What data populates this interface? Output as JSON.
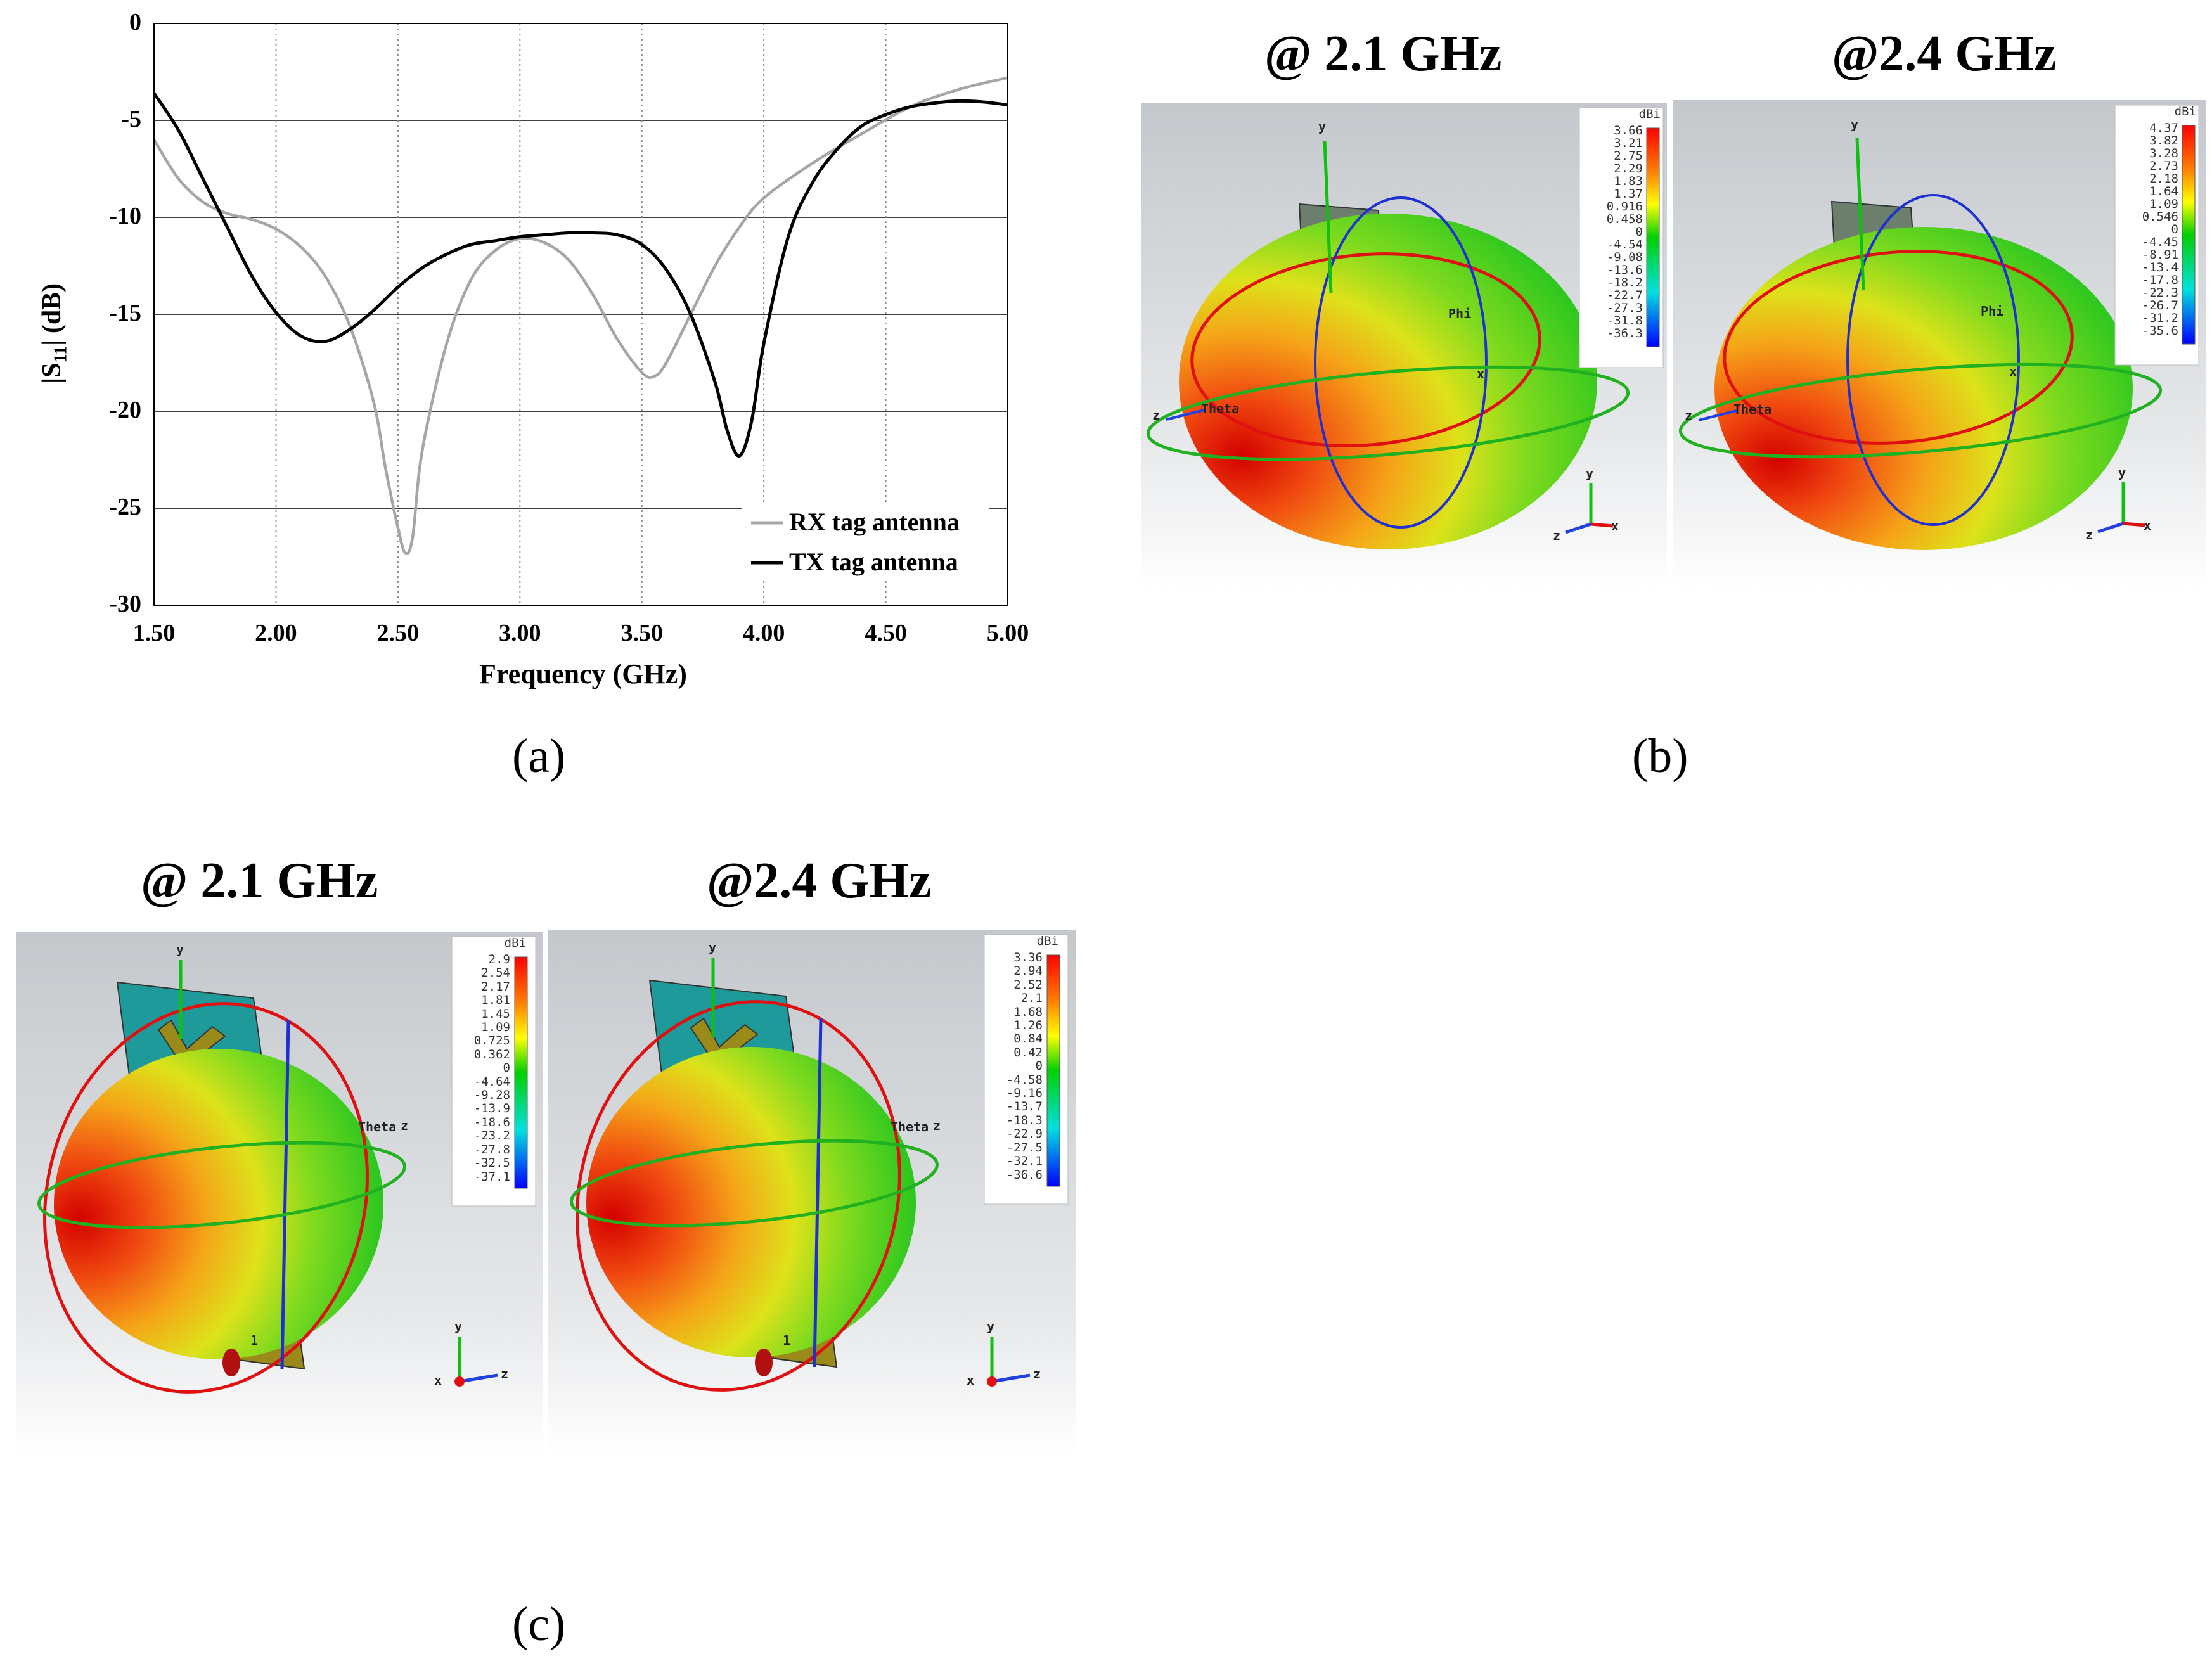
{
  "figure": {
    "panel_labels": [
      "(a)",
      "(b)",
      "(c)"
    ],
    "panel_b": {
      "titles": [
        "@ 2.1 GHz",
        "@2.4 GHz"
      ],
      "colorbars": [
        {
          "unit": "dBi",
          "labels": [
            "3.66",
            "3.21",
            "2.75",
            "2.29",
            "1.83",
            "1.37",
            "0.916",
            "0.458",
            "0",
            "-4.54",
            "-9.08",
            "-13.6",
            "-18.2",
            "-22.7",
            "-27.3",
            "-31.8",
            "-36.3"
          ]
        },
        {
          "unit": "dBi",
          "labels": [
            "4.37",
            "3.82",
            "3.28",
            "2.73",
            "2.18",
            "1.64",
            "1.09",
            "0.546",
            "0",
            "-4.45",
            "-8.91",
            "-13.4",
            "-17.8",
            "-22.3",
            "-26.7",
            "-31.2",
            "-35.6"
          ]
        }
      ],
      "axis_names": {
        "y": "y",
        "x": "x",
        "z": "z",
        "phi": "Phi",
        "theta": "Theta"
      }
    },
    "panel_c": {
      "titles": [
        "@ 2.1 GHz",
        "@2.4 GHz"
      ],
      "colorbars": [
        {
          "unit": "dBi",
          "labels": [
            "2.9",
            "2.54",
            "2.17",
            "1.81",
            "1.45",
            "1.09",
            "0.725",
            "0.362",
            "0",
            "-4.64",
            "-9.28",
            "-13.9",
            "-18.6",
            "-23.2",
            "-27.8",
            "-32.5",
            "-37.1"
          ]
        },
        {
          "unit": "dBi",
          "labels": [
            "3.36",
            "2.94",
            "2.52",
            "2.1",
            "1.68",
            "1.26",
            "0.84",
            "0.42",
            "0",
            "-4.58",
            "-9.16",
            "-13.7",
            "-18.3",
            "-22.9",
            "-27.5",
            "-32.1",
            "-36.6"
          ]
        }
      ],
      "axis_names": {
        "y": "y",
        "x": "x",
        "z": "z",
        "theta": "Theta",
        "port": "1"
      }
    }
  },
  "chart_data": {
    "type": "line",
    "title": "",
    "xlabel": "Frequency (GHz)",
    "ylabel": "|S11| (dB)",
    "xlim": [
      1.5,
      5.0
    ],
    "ylim": [
      -30,
      0
    ],
    "xticks": [
      "1.50",
      "2.00",
      "2.50",
      "3.00",
      "3.50",
      "4.00",
      "4.50",
      "5.00"
    ],
    "yticks": [
      "0",
      "-5",
      "-10",
      "-15",
      "-20",
      "-25",
      "-30"
    ],
    "grid": true,
    "legend": "bottom-right",
    "series": [
      {
        "name": "RX tag antenna",
        "color": "#a6a6a6",
        "x": [
          1.5,
          1.6,
          1.7,
          1.8,
          1.9,
          2.0,
          2.1,
          2.2,
          2.3,
          2.4,
          2.45,
          2.5,
          2.53,
          2.56,
          2.6,
          2.7,
          2.8,
          2.9,
          3.0,
          3.1,
          3.2,
          3.3,
          3.4,
          3.5,
          3.55,
          3.6,
          3.7,
          3.8,
          3.9,
          4.0,
          4.2,
          4.4,
          4.6,
          4.8,
          5.0
        ],
        "y": [
          -6,
          -8,
          -9.2,
          -9.8,
          -10.1,
          -10.6,
          -11.5,
          -13,
          -15.5,
          -19.5,
          -23,
          -26,
          -27.3,
          -26.5,
          -22,
          -16.5,
          -13.2,
          -11.7,
          -11.1,
          -11.3,
          -12.2,
          -14,
          -16.3,
          -18,
          -18.2,
          -17.5,
          -15,
          -12.5,
          -10.5,
          -9,
          -7.2,
          -5.7,
          -4.3,
          -3.4,
          -2.8
        ]
      },
      {
        "name": "TX tag antenna",
        "color": "#000000",
        "x": [
          1.5,
          1.6,
          1.7,
          1.8,
          1.9,
          2.0,
          2.1,
          2.2,
          2.3,
          2.4,
          2.5,
          2.6,
          2.7,
          2.8,
          2.9,
          3.0,
          3.1,
          3.2,
          3.3,
          3.4,
          3.5,
          3.6,
          3.7,
          3.8,
          3.85,
          3.9,
          3.95,
          4.0,
          4.1,
          4.2,
          4.3,
          4.4,
          4.5,
          4.6,
          4.7,
          4.8,
          4.9,
          5.0
        ],
        "y": [
          -3.6,
          -5.5,
          -8,
          -10.5,
          -13,
          -14.9,
          -16.1,
          -16.4,
          -15.8,
          -14.8,
          -13.6,
          -12.6,
          -11.9,
          -11.4,
          -11.2,
          -11,
          -10.9,
          -10.8,
          -10.8,
          -10.9,
          -11.4,
          -12.7,
          -15,
          -18.5,
          -21,
          -22.3,
          -20.5,
          -16.5,
          -11,
          -8.2,
          -6.5,
          -5.3,
          -4.7,
          -4.3,
          -4.1,
          -4,
          -4.05,
          -4.2
        ]
      }
    ]
  }
}
